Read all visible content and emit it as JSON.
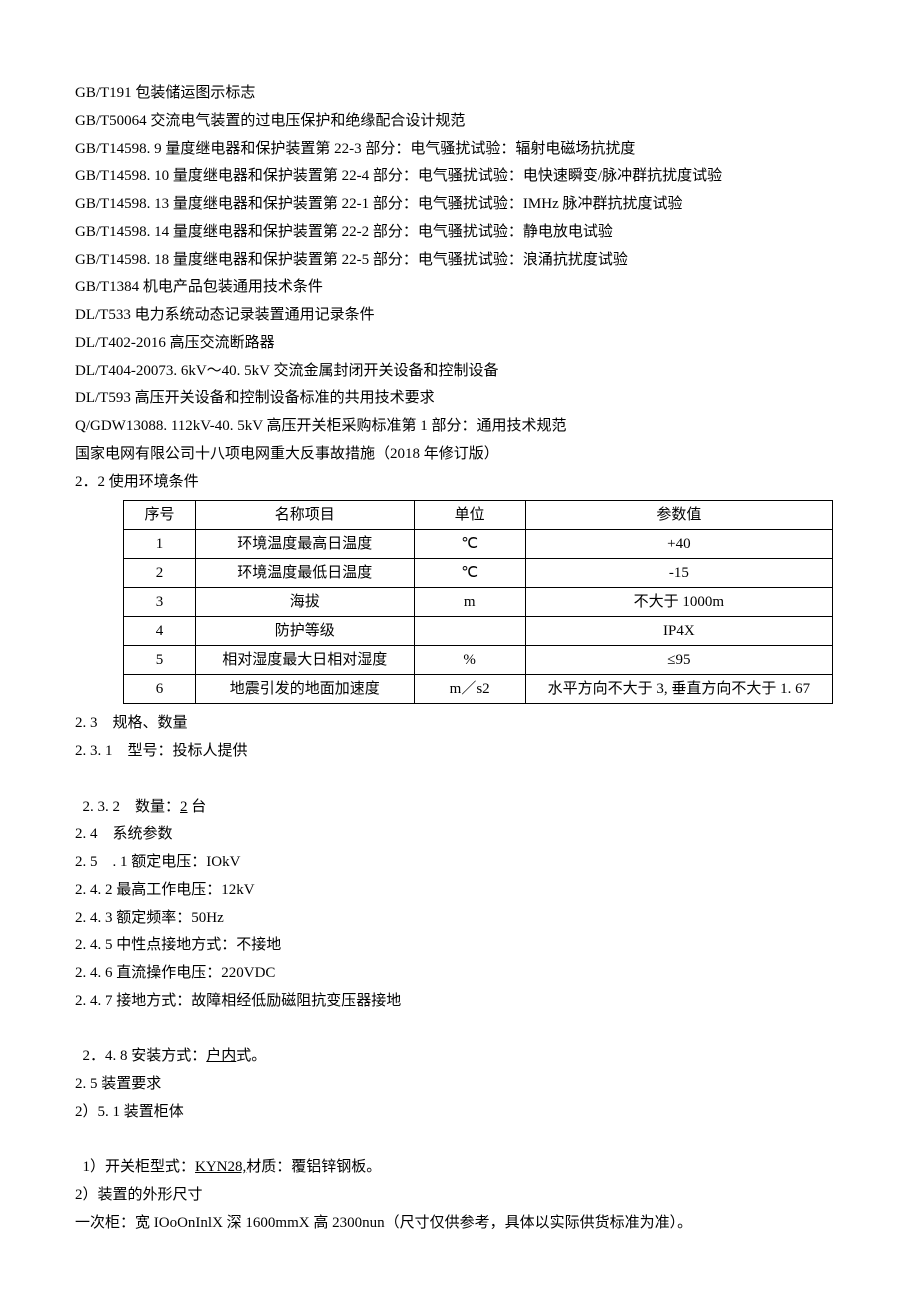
{
  "standards": [
    "GB/T191 包装储运图示标志",
    "GB/T50064 交流电气装置的过电压保护和绝缘配合设计规范",
    "GB/T14598. 9 量度继电器和保护装置第 22-3 部分：电气骚扰试验：辐射电磁场抗扰度",
    "GB/T14598. 10 量度继电器和保护装置第 22-4 部分：电气骚扰试验：电快速瞬变/脉冲群抗扰度试验",
    "GB/T14598. 13 量度继电器和保护装置第 22-1 部分：电气骚扰试验：IMHz 脉冲群抗扰度试验",
    "GB/T14598. 14 量度继电器和保护装置第 22-2 部分：电气骚扰试验：静电放电试验",
    "GB/T14598. 18 量度继电器和保护装置第 22-5 部分：电气骚扰试验：浪涌抗扰度试验",
    "GB/T1384 机电产品包装通用技术条件",
    "DL/T533 电力系统动态记录装置通用记录条件",
    "DL/T402-2016 高压交流断路器",
    "DL/T404-20073. 6kV～40. 5kV 交流金属封闭开关设备和控制设备",
    "DL/T593 高压开关设备和控制设备标准的共用技术要求",
    "Q/GDW13088. 112kV-40. 5kV 高压开关柜采购标准第 1 部分：通用技术规范",
    "国家电网有限公司十八项电网重大反事故措施（2018 年修订版）"
  ],
  "section_2_2_title": "2．2 使用环境条件",
  "env_table": {
    "headers": [
      "序号",
      "名称项目",
      "单位",
      "参数值"
    ],
    "rows": [
      [
        "1",
        "环境温度最高日温度",
        "℃",
        "+40"
      ],
      [
        "2",
        "环境温度最低日温度",
        "℃",
        "-15"
      ],
      [
        "3",
        "海拔",
        "m",
        "不大于 1000m"
      ],
      [
        "4",
        "防护等级",
        "",
        "IP4X"
      ],
      [
        "5",
        "相对湿度最大日相对湿度",
        "%",
        "≤95"
      ],
      [
        "6",
        "地震引发的地面加速度",
        "m／s2",
        "水平方向不大于 3, 垂直方向不大于 1. 67"
      ]
    ]
  },
  "s23": "2. 3　规格、数量",
  "s231": "2. 3. 1　型号：投标人提供",
  "s232a": "2. 3. 2　数量：",
  "s232u": "2",
  "s232b": " 台",
  "s24": "2. 4　系统参数",
  "s25": "2. 5　. 1 额定电压：IOkV",
  "s242": "2. 4. 2 最高工作电压：12kV",
  "s243": "2. 4. 3 额定频率：50Hz",
  "s245": "2. 4. 5 中性点接地方式：不接地",
  "s246": "2. 4. 6 直流操作电压：220VDC",
  "s247": "2. 4. 7 接地方式：故障相经低励磁阻抗变压器接地",
  "s248a": "2．4. 8 安装方式：",
  "s248u": "户内",
  "s248b": "式。",
  "s25b": "2. 5 装置要求",
  "s251": "2）5. 1 装置柜体",
  "s1a": "1）开关柜型式：",
  "s1u": "KYN28,",
  "s1b": "材质：覆铝锌钢板。",
  "s2": "2）装置的外形尺寸",
  "dim": "一次柜：宽 IOoOnInlX 深 1600mmX 高 2300nun（尺寸仅供参考，具体以实际供货标准为准）。"
}
